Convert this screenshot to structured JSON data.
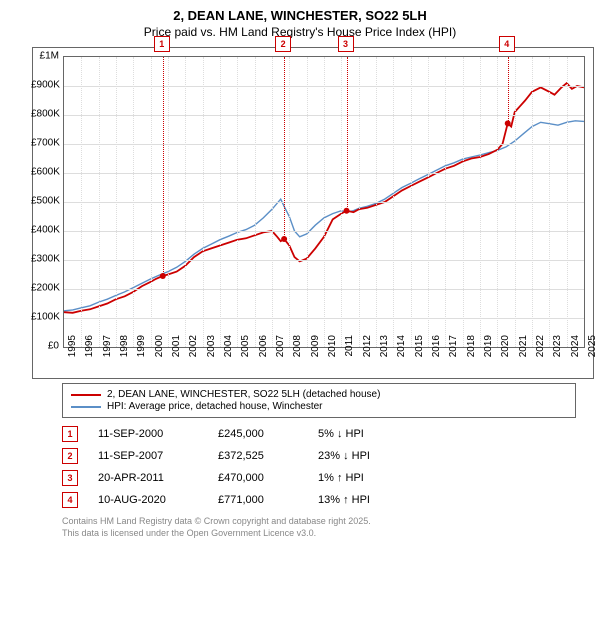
{
  "title_line1": "2, DEAN LANE, WINCHESTER, SO22 5LH",
  "title_line2": "Price paid vs. HM Land Registry's House Price Index (HPI)",
  "chart": {
    "type": "line",
    "background": "#ffffff",
    "grid_color": "#dddddd",
    "border_color": "#666666",
    "ylim": [
      0,
      1000000
    ],
    "ytick_step": 100000,
    "yticks": [
      "£0",
      "£100K",
      "£200K",
      "£300K",
      "£400K",
      "£500K",
      "£600K",
      "£700K",
      "£800K",
      "£900K",
      "£1M"
    ],
    "xlim": [
      1995,
      2025
    ],
    "xticks": [
      "1995",
      "1996",
      "1997",
      "1998",
      "1999",
      "2000",
      "2001",
      "2002",
      "2003",
      "2004",
      "2005",
      "2006",
      "2007",
      "2008",
      "2009",
      "2010",
      "2011",
      "2012",
      "2013",
      "2014",
      "2015",
      "2016",
      "2017",
      "2018",
      "2019",
      "2020",
      "2021",
      "2022",
      "2023",
      "2024",
      "2025"
    ],
    "series": [
      {
        "name": "property",
        "label": "2, DEAN LANE, WINCHESTER, SO22 5LH (detached house)",
        "color": "#cc0000",
        "width": 1.8,
        "data": [
          [
            1995,
            120000
          ],
          [
            1995.5,
            118000
          ],
          [
            1996,
            125000
          ],
          [
            1996.5,
            130000
          ],
          [
            1997,
            140000
          ],
          [
            1997.5,
            150000
          ],
          [
            1998,
            165000
          ],
          [
            1998.5,
            175000
          ],
          [
            1999,
            190000
          ],
          [
            1999.5,
            210000
          ],
          [
            2000,
            225000
          ],
          [
            2000.3,
            235000
          ],
          [
            2000.7,
            245000
          ],
          [
            2001,
            250000
          ],
          [
            2001.5,
            260000
          ],
          [
            2002,
            280000
          ],
          [
            2002.5,
            310000
          ],
          [
            2003,
            330000
          ],
          [
            2003.5,
            340000
          ],
          [
            2004,
            350000
          ],
          [
            2004.5,
            360000
          ],
          [
            2005,
            370000
          ],
          [
            2005.5,
            375000
          ],
          [
            2006,
            385000
          ],
          [
            2006.5,
            395000
          ],
          [
            2007,
            400000
          ],
          [
            2007.3,
            380000
          ],
          [
            2007.5,
            365000
          ],
          [
            2007.7,
            372525
          ],
          [
            2008,
            350000
          ],
          [
            2008.3,
            310000
          ],
          [
            2008.6,
            295000
          ],
          [
            2009,
            305000
          ],
          [
            2009.5,
            340000
          ],
          [
            2010,
            380000
          ],
          [
            2010.5,
            440000
          ],
          [
            2011,
            460000
          ],
          [
            2011.3,
            470000
          ],
          [
            2011.7,
            465000
          ],
          [
            2012,
            475000
          ],
          [
            2012.5,
            480000
          ],
          [
            2013,
            490000
          ],
          [
            2013.5,
            500000
          ],
          [
            2014,
            520000
          ],
          [
            2014.5,
            540000
          ],
          [
            2015,
            555000
          ],
          [
            2015.5,
            570000
          ],
          [
            2016,
            585000
          ],
          [
            2016.5,
            600000
          ],
          [
            2017,
            615000
          ],
          [
            2017.5,
            625000
          ],
          [
            2018,
            640000
          ],
          [
            2018.5,
            650000
          ],
          [
            2019,
            655000
          ],
          [
            2019.5,
            665000
          ],
          [
            2020,
            680000
          ],
          [
            2020.3,
            700000
          ],
          [
            2020.6,
            771000
          ],
          [
            2020.8,
            760000
          ],
          [
            2021,
            810000
          ],
          [
            2021.3,
            830000
          ],
          [
            2021.6,
            850000
          ],
          [
            2022,
            880000
          ],
          [
            2022.5,
            895000
          ],
          [
            2023,
            880000
          ],
          [
            2023.3,
            870000
          ],
          [
            2023.7,
            895000
          ],
          [
            2024,
            910000
          ],
          [
            2024.3,
            890000
          ],
          [
            2024.6,
            900000
          ],
          [
            2025,
            895000
          ]
        ]
      },
      {
        "name": "hpi",
        "label": "HPI: Average price, detached house, Winchester",
        "color": "#5b8fc7",
        "width": 1.4,
        "data": [
          [
            1995,
            125000
          ],
          [
            1995.5,
            128000
          ],
          [
            1996,
            135000
          ],
          [
            1996.5,
            142000
          ],
          [
            1997,
            155000
          ],
          [
            1997.5,
            165000
          ],
          [
            1998,
            178000
          ],
          [
            1998.5,
            190000
          ],
          [
            1999,
            205000
          ],
          [
            1999.5,
            220000
          ],
          [
            2000,
            235000
          ],
          [
            2000.5,
            248000
          ],
          [
            2001,
            260000
          ],
          [
            2001.5,
            275000
          ],
          [
            2002,
            295000
          ],
          [
            2002.5,
            320000
          ],
          [
            2003,
            340000
          ],
          [
            2003.5,
            355000
          ],
          [
            2004,
            370000
          ],
          [
            2004.5,
            382000
          ],
          [
            2005,
            395000
          ],
          [
            2005.5,
            405000
          ],
          [
            2006,
            420000
          ],
          [
            2006.5,
            445000
          ],
          [
            2007,
            475000
          ],
          [
            2007.5,
            510000
          ],
          [
            2007.7,
            485000
          ],
          [
            2008,
            450000
          ],
          [
            2008.3,
            400000
          ],
          [
            2008.6,
            380000
          ],
          [
            2009,
            390000
          ],
          [
            2009.5,
            420000
          ],
          [
            2010,
            445000
          ],
          [
            2010.5,
            460000
          ],
          [
            2011,
            470000
          ],
          [
            2011.3,
            465000
          ],
          [
            2011.7,
            470000
          ],
          [
            2012,
            478000
          ],
          [
            2012.5,
            485000
          ],
          [
            2013,
            495000
          ],
          [
            2013.5,
            510000
          ],
          [
            2014,
            530000
          ],
          [
            2014.5,
            550000
          ],
          [
            2015,
            565000
          ],
          [
            2015.5,
            580000
          ],
          [
            2016,
            595000
          ],
          [
            2016.5,
            610000
          ],
          [
            2017,
            625000
          ],
          [
            2017.5,
            635000
          ],
          [
            2018,
            648000
          ],
          [
            2018.5,
            655000
          ],
          [
            2019,
            662000
          ],
          [
            2019.5,
            670000
          ],
          [
            2020,
            678000
          ],
          [
            2020.5,
            690000
          ],
          [
            2021,
            710000
          ],
          [
            2021.5,
            735000
          ],
          [
            2022,
            760000
          ],
          [
            2022.5,
            775000
          ],
          [
            2023,
            770000
          ],
          [
            2023.5,
            765000
          ],
          [
            2024,
            775000
          ],
          [
            2024.5,
            780000
          ],
          [
            2025,
            778000
          ]
        ]
      }
    ],
    "markers": [
      {
        "n": "1",
        "x": 2000.7,
        "y": 245000
      },
      {
        "n": "2",
        "x": 2007.7,
        "y": 372525
      },
      {
        "n": "3",
        "x": 2011.3,
        "y": 470000
      },
      {
        "n": "4",
        "x": 2020.6,
        "y": 771000
      }
    ]
  },
  "legend": {
    "items": [
      {
        "color": "#cc0000",
        "label": "2, DEAN LANE, WINCHESTER, SO22 5LH (detached house)"
      },
      {
        "color": "#5b8fc7",
        "label": "HPI: Average price, detached house, Winchester"
      }
    ]
  },
  "transactions": [
    {
      "n": "1",
      "date": "11-SEP-2000",
      "price": "£245,000",
      "pct": "5%",
      "dir": "down",
      "suffix": "HPI"
    },
    {
      "n": "2",
      "date": "11-SEP-2007",
      "price": "£372,525",
      "pct": "23%",
      "dir": "down",
      "suffix": "HPI"
    },
    {
      "n": "3",
      "date": "20-APR-2011",
      "price": "£470,000",
      "pct": "1%",
      "dir": "up",
      "suffix": "HPI"
    },
    {
      "n": "4",
      "date": "10-AUG-2020",
      "price": "£771,000",
      "pct": "13%",
      "dir": "up",
      "suffix": "HPI"
    }
  ],
  "footer": {
    "line1": "Contains HM Land Registry data © Crown copyright and database right 2025.",
    "line2": "This data is licensed under the Open Government Licence v3.0."
  },
  "arrows": {
    "up": "↑",
    "down": "↓"
  }
}
